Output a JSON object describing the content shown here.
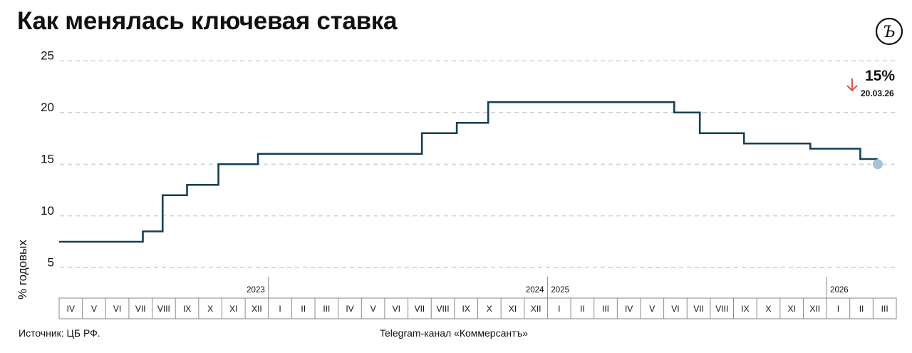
{
  "title": "Как менялась ключевая ставка",
  "logo_text": "Ъ",
  "footer": {
    "source": "Источник: ЦБ РФ.",
    "channel": "Telegram-канал «Коммерсантъ»"
  },
  "latest": {
    "value_label": "15%",
    "date": "20.03.26",
    "direction": "down"
  },
  "colors": {
    "line": "#163f55",
    "grid": "#bdbdbd",
    "arrow": "#d9534f",
    "marker": "#a9c1d6",
    "axis_box": "#8a8a8a"
  },
  "chart_data": {
    "type": "line",
    "step": true,
    "title": "Как менялась ключевая ставка",
    "xlabel": "",
    "ylabel": "% годовых",
    "ylim": [
      3.5,
      25.5
    ],
    "yticks": [
      "5",
      "10",
      "15",
      "20",
      "25"
    ],
    "grid": true,
    "month_labels": [
      "IV",
      "V",
      "VI",
      "VII",
      "VIII",
      "IX",
      "X",
      "XI",
      "XII",
      "I",
      "II",
      "III",
      "IV",
      "V",
      "VI",
      "VII",
      "VIII",
      "IX",
      "X",
      "XI",
      "XII",
      "I",
      "II",
      "III",
      "IV",
      "V",
      "VI",
      "VII",
      "VIII",
      "IX",
      "X",
      "XI",
      "XII",
      "I",
      "II",
      "III"
    ],
    "year_labels": [
      {
        "label": "2023",
        "after_month_index": 8
      },
      {
        "label": "2024",
        "after_month_index": 20
      },
      {
        "label": "2025",
        "after_month_index": 20
      },
      {
        "label": "2026",
        "after_month_index": 32
      }
    ],
    "x_unit": "month index (0 = IV 2023)",
    "series": [
      {
        "steps": [
          {
            "from": 0,
            "to": 3.6,
            "rate": 7.5
          },
          {
            "from": 3.6,
            "to": 4.45,
            "rate": 8.5
          },
          {
            "from": 4.45,
            "to": 5.5,
            "rate": 12
          },
          {
            "from": 5.5,
            "to": 6.85,
            "rate": 13
          },
          {
            "from": 6.85,
            "to": 8.55,
            "rate": 15
          },
          {
            "from": 8.55,
            "to": 15.6,
            "rate": 16
          },
          {
            "from": 15.6,
            "to": 17.1,
            "rate": 18
          },
          {
            "from": 17.1,
            "to": 18.45,
            "rate": 19
          },
          {
            "from": 18.45,
            "to": 26.45,
            "rate": 21
          },
          {
            "from": 26.45,
            "to": 27.55,
            "rate": 20
          },
          {
            "from": 27.55,
            "to": 29.45,
            "rate": 18
          },
          {
            "from": 29.45,
            "to": 32.3,
            "rate": 17
          },
          {
            "from": 32.3,
            "to": 34.45,
            "rate": 16.5
          },
          {
            "from": 34.45,
            "to": 35.2,
            "rate": 15.5
          }
        ],
        "end_point": {
          "x": 35.2,
          "rate": 15
        }
      }
    ]
  }
}
